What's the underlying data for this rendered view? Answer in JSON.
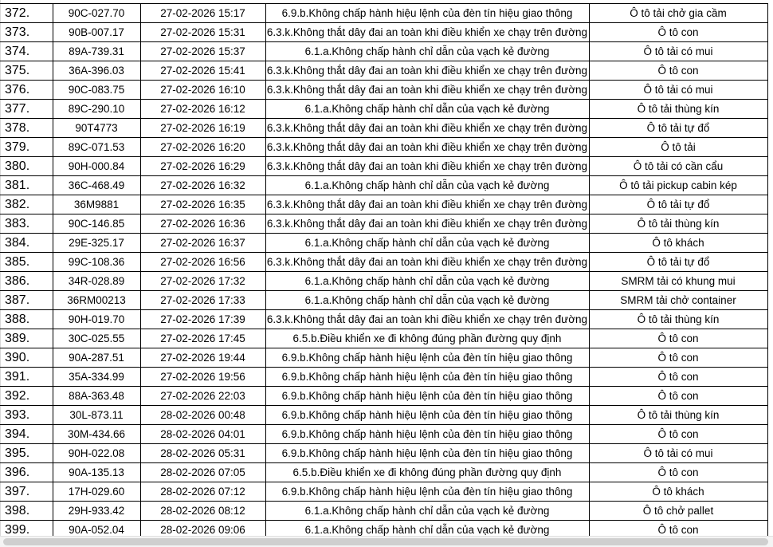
{
  "rows": [
    [
      "372.",
      "90C-027.70",
      "27-02-2026 15:17",
      "6.9.b.Không chấp hành hiệu lệnh của đèn tín hiệu giao thông",
      "Ô tô tải chở gia cầm"
    ],
    [
      "373.",
      "90B-007.17",
      "27-02-2026 15:31",
      "6.3.k.Không thắt dây đai an toàn khi điều khiển xe chạy trên đường",
      "Ô tô con"
    ],
    [
      "374.",
      "89A-739.31",
      "27-02-2026 15:37",
      "6.1.a.Không chấp hành chỉ dẫn của vạch kẻ đường",
      "Ô tô tải có mui"
    ],
    [
      "375.",
      "36A-396.03",
      "27-02-2026 15:41",
      "6.3.k.Không thắt dây đai an toàn khi điều khiển xe chạy trên đường",
      "Ô tô con"
    ],
    [
      "376.",
      "90C-083.75",
      "27-02-2026 16:10",
      "6.3.k.Không thắt dây đai an toàn khi điều khiển xe chạy trên đường",
      "Ô tô tải có mui"
    ],
    [
      "377.",
      "89C-290.10",
      "27-02-2026 16:12",
      "6.1.a.Không chấp hành chỉ dẫn của vạch kẻ đường",
      "Ô tô tải thùng kín"
    ],
    [
      "378.",
      "90T4773",
      "27-02-2026 16:19",
      "6.3.k.Không thắt dây đai an toàn khi điều khiển xe chạy trên đường",
      "Ô tô tải tự đổ"
    ],
    [
      "379.",
      "89C-071.53",
      "27-02-2026 16:20",
      "6.3.k.Không thắt dây đai an toàn khi điều khiển xe chạy trên đường",
      "Ô tô tải"
    ],
    [
      "380.",
      "90H-000.84",
      "27-02-2026 16:29",
      "6.3.k.Không thắt dây đai an toàn khi điều khiển xe chạy trên đường",
      "Ô tô tải có cần cẩu"
    ],
    [
      "381.",
      "36C-468.49",
      "27-02-2026 16:32",
      "6.1.a.Không chấp hành chỉ dẫn của vạch kẻ đường",
      "Ô tô tải pickup cabin kép"
    ],
    [
      "382.",
      "36M9881",
      "27-02-2026 16:35",
      "6.3.k.Không thắt dây đai an toàn khi điều khiển xe chạy trên đường",
      "Ô tô tải tự đổ"
    ],
    [
      "383.",
      "90C-146.85",
      "27-02-2026 16:36",
      "6.3.k.Không thắt dây đai an toàn khi điều khiển xe chạy trên đường",
      "Ô tô tải thùng kín"
    ],
    [
      "384.",
      "29E-325.17",
      "27-02-2026 16:37",
      "6.1.a.Không chấp hành chỉ dẫn của vạch kẻ đường",
      "Ô tô khách"
    ],
    [
      "385.",
      "99C-108.36",
      "27-02-2026 16:56",
      "6.3.k.Không thắt dây đai an toàn khi điều khiển xe chạy trên đường",
      "Ô tô tải tự đổ"
    ],
    [
      "386.",
      "34R-028.89",
      "27-02-2026 17:32",
      "6.1.a.Không chấp hành chỉ dẫn của vạch kẻ đường",
      "SMRM tải có khung mui"
    ],
    [
      "387.",
      "36RM00213",
      "27-02-2026 17:33",
      "6.1.a.Không chấp hành chỉ dẫn của vạch kẻ đường",
      "SMRM tải chở container"
    ],
    [
      "388.",
      "90H-019.70",
      "27-02-2026 17:39",
      "6.3.k.Không thắt dây đai an toàn khi điều khiển xe chạy trên đường",
      "Ô tô tải thùng kín"
    ],
    [
      "389.",
      "30C-025.55",
      "27-02-2026 17:45",
      "6.5.b.Điều khiển xe đi không đúng phần đường quy định",
      "Ô tô con"
    ],
    [
      "390.",
      "90A-287.51",
      "27-02-2026 19:44",
      "6.9.b.Không chấp hành hiệu lệnh của đèn tín hiệu giao thông",
      "Ô tô con"
    ],
    [
      "391.",
      "35A-334.99",
      "27-02-2026 19:56",
      "6.9.b.Không chấp hành hiệu lệnh của đèn tín hiệu giao thông",
      "Ô tô con"
    ],
    [
      "392.",
      "88A-363.48",
      "27-02-2026 22:03",
      "6.9.b.Không chấp hành hiệu lệnh của đèn tín hiệu giao thông",
      "Ô tô con"
    ],
    [
      "393.",
      "30L-873.11",
      "28-02-2026 00:48",
      "6.9.b.Không chấp hành hiệu lệnh của đèn tín hiệu giao thông",
      "Ô tô tải thùng kín"
    ],
    [
      "394.",
      "30M-434.66",
      "28-02-2026 04:01",
      "6.9.b.Không chấp hành hiệu lệnh của đèn tín hiệu giao thông",
      "Ô tô con"
    ],
    [
      "395.",
      "90H-022.08",
      "28-02-2026 05:31",
      "6.9.b.Không chấp hành hiệu lệnh của đèn tín hiệu giao thông",
      "Ô tô tải có mui"
    ],
    [
      "396.",
      "90A-135.13",
      "28-02-2026 07:05",
      "6.5.b.Điều khiển xe đi không đúng phần đường quy định",
      "Ô tô con"
    ],
    [
      "397.",
      "17H-029.60",
      "28-02-2026 07:12",
      "6.9.b.Không chấp hành hiệu lệnh của đèn tín hiệu giao thông",
      "Ô tô khách"
    ],
    [
      "398.",
      "29H-933.42",
      "28-02-2026 08:12",
      "6.1.a.Không chấp hành chỉ dẫn của vạch kẻ đường",
      "Ô tô chở pallet"
    ],
    [
      "399.",
      "90A-052.04",
      "28-02-2026 09:06",
      "6.1.a.Không chấp hành chỉ dẫn của vạch kẻ đường",
      "Ô tô con"
    ]
  ]
}
